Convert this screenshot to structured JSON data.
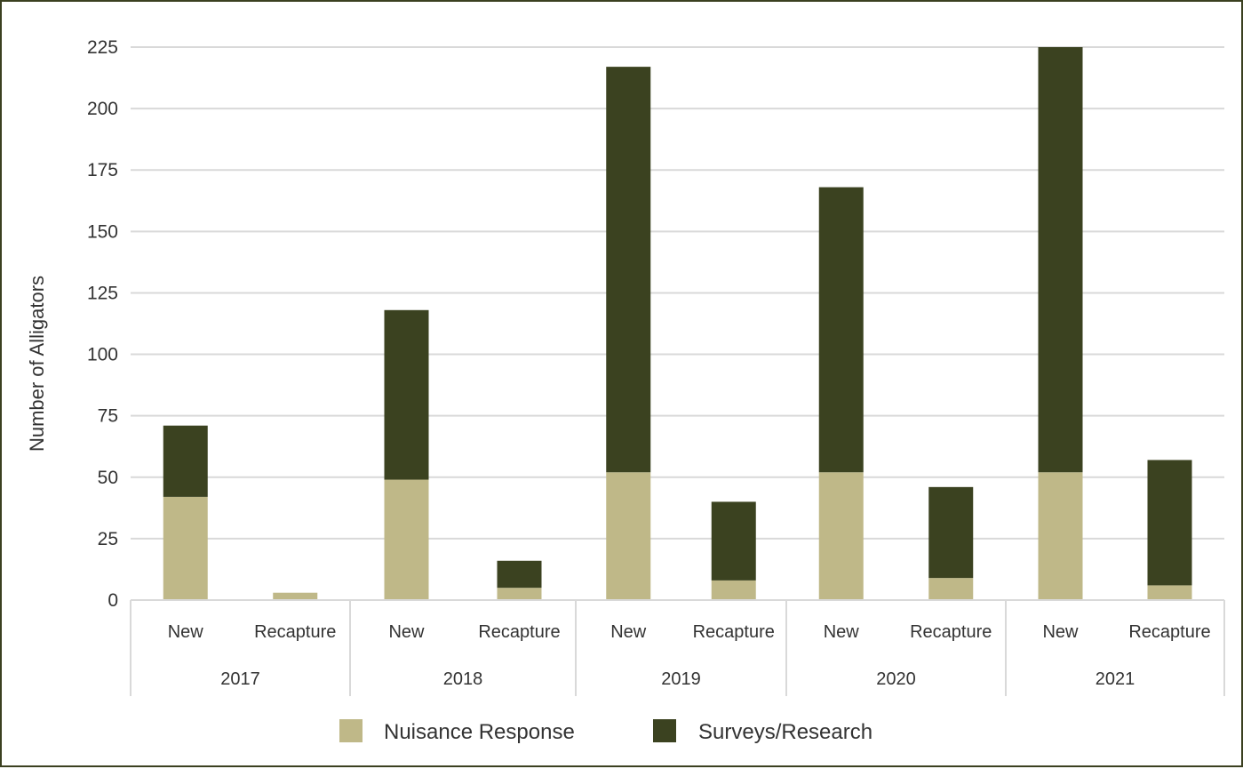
{
  "chart_data": {
    "type": "bar",
    "stacked": true,
    "title": "",
    "xlabel": "",
    "ylabel": "Number of Alligators",
    "ylim": [
      0,
      225
    ],
    "yticks": [
      0,
      25,
      50,
      75,
      100,
      125,
      150,
      175,
      200,
      225
    ],
    "grid": true,
    "legend_position": "bottom",
    "groups": [
      {
        "label": "2017",
        "categories": [
          "New",
          "Recapture"
        ]
      },
      {
        "label": "2018",
        "categories": [
          "New",
          "Recapture"
        ]
      },
      {
        "label": "2019",
        "categories": [
          "New",
          "Recapture"
        ]
      },
      {
        "label": "2020",
        "categories": [
          "New",
          "Recapture"
        ]
      },
      {
        "label": "2021",
        "categories": [
          "New",
          "Recapture"
        ]
      }
    ],
    "series": [
      {
        "name": "Nuisance Response",
        "color": "#bfb888",
        "values": [
          42,
          3,
          49,
          5,
          52,
          8,
          52,
          9,
          52,
          6
        ]
      },
      {
        "name": "Surveys/Research",
        "color": "#3b4220",
        "values": [
          29,
          0,
          69,
          11,
          165,
          32,
          116,
          37,
          173,
          51
        ]
      }
    ]
  },
  "colors": {
    "frame": "#3b4020",
    "grid": "#d9d9d9",
    "text": "#333333"
  }
}
